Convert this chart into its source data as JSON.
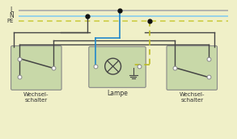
{
  "bg_color": "#f0f0c8",
  "box_color": "#c8d8a8",
  "box_edge": "#888888",
  "line_L_color": "#aaaaaa",
  "line_N_color": "#88ccee",
  "line_PE_color": "#cccc44",
  "line_blue": "#2288cc",
  "line_yellow_green": "#bbbb22",
  "line_gray": "#444444",
  "dot_color": "#111111",
  "text_color": "#333333",
  "L_label": "L",
  "N_label": "N",
  "PE_label": "PE",
  "lampe_label": "Lampe",
  "schalter_label": "Wechsel-\nschalter"
}
